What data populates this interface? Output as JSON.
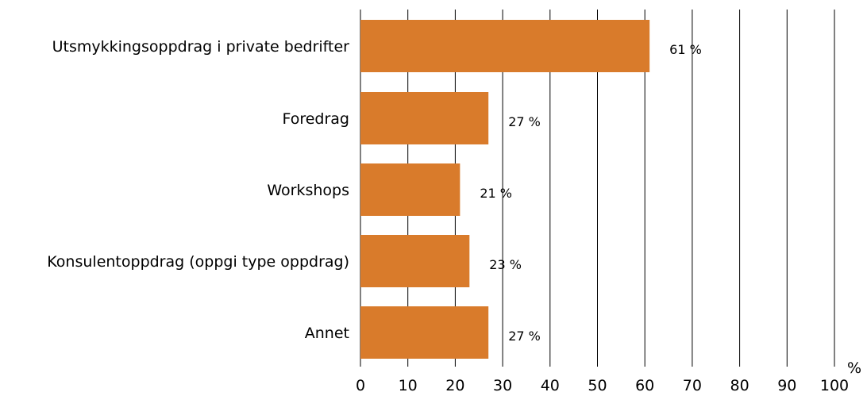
{
  "chart_data": {
    "type": "bar",
    "orientation": "horizontal",
    "categories": [
      "Utsmykkingsoppdrag i private bedrifter",
      "Foredrag",
      "Workshops",
      "Konsulentoppdrag (oppgi type oppdrag)",
      "Annet"
    ],
    "values": [
      61,
      27,
      21,
      23,
      27
    ],
    "data_labels": [
      "61 %",
      "27 %",
      "21 %",
      "23 %",
      "27 %"
    ],
    "xlim": [
      0,
      100
    ],
    "x_ticks": [
      0,
      10,
      20,
      30,
      40,
      50,
      60,
      70,
      80,
      90,
      100
    ],
    "x_unit": "%",
    "bar_color": "#d97b2b",
    "gridlines": "vertical",
    "grid_color": "#000000"
  }
}
